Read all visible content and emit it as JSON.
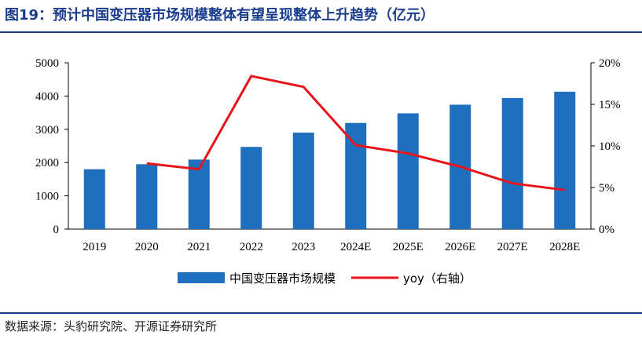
{
  "title": "图19：预计中国变压器市场规模整体有望呈现整体上升趋势（亿元）",
  "source": "数据来源：头豹研究院、开源证券研究所",
  "chart_data": {
    "type": "bar",
    "categories": [
      "2019",
      "2020",
      "2021",
      "2022",
      "2023",
      "2024E",
      "2025E",
      "2026E",
      "2027E",
      "2028E"
    ],
    "series": [
      {
        "name": "中国变压器市场规模",
        "type": "bar",
        "axis": "left",
        "color": "#1f6fbf",
        "values": [
          1800,
          1950,
          2090,
          2470,
          2900,
          3190,
          3480,
          3740,
          3940,
          4130
        ]
      },
      {
        "name": "yoy（右轴）",
        "type": "line",
        "axis": "right",
        "color": "#e8141a",
        "values": [
          null,
          0.079,
          0.072,
          0.184,
          0.171,
          0.101,
          0.091,
          0.075,
          0.055,
          0.047
        ]
      }
    ],
    "y_left": {
      "min": 0,
      "max": 5000,
      "ticks": [
        0,
        1000,
        2000,
        3000,
        4000,
        5000
      ]
    },
    "y_right": {
      "min": 0,
      "max": 0.2,
      "ticks": [
        "0%",
        "5%",
        "10%",
        "15%",
        "20%"
      ]
    },
    "legend_position": "bottom",
    "grid": false
  }
}
